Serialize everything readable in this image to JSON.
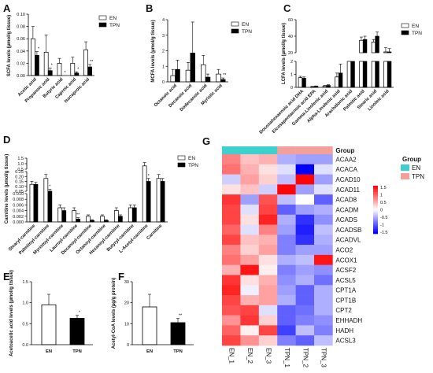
{
  "panels": {
    "A": {
      "label": "A"
    },
    "B": {
      "label": "B"
    },
    "C": {
      "label": "C"
    },
    "D": {
      "label": "D"
    },
    "E": {
      "label": "E"
    },
    "F": {
      "label": "F"
    },
    "G": {
      "label": "G"
    }
  },
  "legend": {
    "en": "EN",
    "tpn": "TPN"
  },
  "colors": {
    "en": "#ffffff",
    "tpn": "#000000",
    "bar_edge": "#000000",
    "group_en": "#3ecfcf",
    "group_tpn": "#f4a09a"
  },
  "chart_data": [
    {
      "id": "A",
      "type": "bar",
      "ylabel": "SCFA levels (µmol/g tissue)",
      "ylim": [
        0,
        0.1
      ],
      "yticks": [
        "0.00",
        "0.02",
        "0.04",
        "0.06",
        "0.08",
        "0.10"
      ],
      "categories": [
        "Acetic acid",
        "Propanoic acid",
        "Butyric acid",
        "Caproic acid",
        "Isocaproic acid"
      ],
      "series": [
        {
          "name": "EN",
          "values": [
            0.06,
            0.038,
            0.02,
            0.02,
            0.042
          ],
          "err": [
            0.02,
            0.028,
            0.008,
            0.01,
            0.013
          ]
        },
        {
          "name": "TPN",
          "values": [
            0.033,
            0.008,
            0.0,
            0.004,
            0.014
          ],
          "err": [
            0.006,
            0.004,
            0.0,
            0.002,
            0.004
          ]
        }
      ],
      "sig": [
        "*",
        "*",
        "*",
        "*",
        "**"
      ]
    },
    {
      "id": "B",
      "type": "bar",
      "ylabel": "MCFA levels (µmol/g tissue)",
      "ylim": [
        0,
        4
      ],
      "yticks": [
        "0",
        "1",
        "2",
        "3",
        "4"
      ],
      "categories": [
        "Octanoic acid",
        "Decanoic acid",
        "Dodecanoic acid",
        "Myristic acid"
      ],
      "series": [
        {
          "name": "EN",
          "values": [
            0.4,
            0.75,
            1.1,
            0.5
          ],
          "err": [
            0.4,
            0.5,
            0.6,
            0.3
          ]
        },
        {
          "name": "TPN",
          "values": [
            0.8,
            1.85,
            0.3,
            0.15
          ],
          "err": [
            0.6,
            2.0,
            0.2,
            0.1
          ]
        }
      ],
      "sig": [
        "",
        "",
        "",
        "**"
      ]
    },
    {
      "id": "C",
      "type": "bar",
      "ylabel": "LCFA levels (µmol/g tissue)",
      "ylim_segments": [
        [
          0,
          2
        ],
        [
          20,
          60
        ]
      ],
      "yticks": [
        "0",
        "1",
        "2",
        "20",
        "40",
        "60"
      ],
      "categories": [
        "Docosahexaenoic acid DHA",
        "Eicosapentaenoic acid EPA",
        "Gamma-Linolenic acid",
        "Alpha-Linolenic acid",
        "Arachidonic acid",
        "Palmitic acid",
        "Stearic acid",
        "Linoleic acid"
      ],
      "series": [
        {
          "name": "EN",
          "values": [
            0.75,
            0.05,
            0.1,
            0.8,
            2.0,
            35,
            33,
            21
          ],
          "err": [
            0.1,
            0.02,
            0.05,
            0.3,
            0.2,
            4,
            3,
            5
          ]
        },
        {
          "name": "TPN",
          "values": [
            0.7,
            0.08,
            0.15,
            1.1,
            2.0,
            36,
            40,
            21
          ],
          "err": [
            0.1,
            0.03,
            0.05,
            0.7,
            0.2,
            4,
            5,
            4
          ]
        }
      ]
    },
    {
      "id": "D",
      "type": "bar",
      "ylabel": "Carnitine levels (µmol/g tissue)",
      "yticks": [
        "0.000",
        "0.002",
        "0.004",
        "0.006",
        "0.008",
        "0.010",
        "0.05",
        "0.10",
        "0.15",
        "0.20",
        "0.25",
        "0.5",
        "1.0",
        "1.5"
      ],
      "categories": [
        "Stearyl-carnitine",
        "Palmitoyl-carnitine",
        "Myristoyl-carnitine",
        "Lauroyl-carnitine",
        "Decanoyl-carnitine",
        "Octanoyl-carnitine",
        "Hexanoyl-carnitine",
        "Butyryl-carnitine",
        "L-Acetyl-carnitine",
        "Carnitine"
      ],
      "series": [
        {
          "name": "EN",
          "values": [
            0.12,
            0.18,
            0.005,
            0.004,
            0.002,
            0.002,
            0.004,
            0.005,
            0.8,
            0.18
          ],
          "err": [
            0.03,
            0.04,
            0.001,
            0.001,
            0.0005,
            0.0005,
            0.001,
            0.001,
            0.3,
            0.04
          ]
        },
        {
          "name": "TPN",
          "values": [
            0.12,
            0.05,
            0.004,
            0.001,
            0.0005,
            0.0005,
            0.002,
            0.005,
            0.15,
            0.15
          ],
          "err": [
            0.02,
            0.02,
            0.001,
            0.0005,
            0.0003,
            0.0003,
            0.0005,
            0.001,
            0.03,
            0.03
          ]
        }
      ],
      "sig": [
        "",
        "*",
        "",
        "**",
        "",
        "",
        "",
        "",
        "*",
        ""
      ]
    },
    {
      "id": "E",
      "type": "bar",
      "ylabel": "Acetoacetic acid levels (µmol/g tissue)",
      "ylim": [
        0,
        1.5
      ],
      "yticks": [
        "0.0",
        "0.5",
        "1.0",
        "1.5"
      ],
      "categories": [
        "EN",
        "TPN"
      ],
      "values": [
        0.95,
        0.63
      ],
      "err": [
        0.25,
        0.07
      ],
      "sig": [
        "",
        "*"
      ]
    },
    {
      "id": "F",
      "type": "bar",
      "ylabel": "Acetyl-CoA levels (µg/g protein)",
      "ylim": [
        0,
        30
      ],
      "yticks": [
        "0",
        "10",
        "20",
        "30"
      ],
      "categories": [
        "EN",
        "TPN"
      ],
      "values": [
        18,
        10.5
      ],
      "err": [
        6,
        2
      ],
      "sig": [
        "",
        "**"
      ]
    },
    {
      "id": "G",
      "type": "heatmap",
      "rows": [
        "ACAA2",
        "ACACA",
        "ACAD10",
        "ACAD11",
        "ACAD8",
        "ACADM",
        "ACADS",
        "ACADSB",
        "ACADVL",
        "ACO2",
        "ACOX1",
        "ACSF2",
        "ACSL5",
        "CPT1A",
        "CPT1B",
        "CPT2",
        "EHHADH",
        "HADH",
        "ACSL3"
      ],
      "columns": [
        "EN_1",
        "EN_2",
        "EN_3",
        "TPN_1",
        "TPN_2",
        "TPN_3"
      ],
      "groups": [
        "EN",
        "EN",
        "EN",
        "TPN",
        "TPN",
        "TPN"
      ],
      "group_title": "Group",
      "colorbar_ticks": [
        "1.5",
        "1",
        "0.5",
        "0",
        "-0.5",
        "-1",
        "-1.5"
      ],
      "values": [
        [
          0.8,
          0.4,
          0.5,
          -0.5,
          -0.6,
          -0.6
        ],
        [
          0.9,
          0.5,
          0.2,
          -0.2,
          -1.6,
          -0.2
        ],
        [
          -0.3,
          0.6,
          0.3,
          -0.4,
          1.6,
          -0.6
        ],
        [
          0.2,
          0.4,
          -0.3,
          1.6,
          -0.6,
          -0.2
        ],
        [
          1.3,
          -0.6,
          1.1,
          -0.4,
          0.0,
          -1.0
        ],
        [
          1.2,
          -0.2,
          1.2,
          -1.0,
          -0.6,
          -0.5
        ],
        [
          1.2,
          0.2,
          1.4,
          -0.5,
          -1.3,
          -0.7
        ],
        [
          1.0,
          -0.2,
          0.8,
          -0.6,
          -1.4,
          -0.4
        ],
        [
          1.2,
          0.4,
          0.5,
          -0.8,
          -1.3,
          -0.5
        ],
        [
          0.8,
          0.3,
          0.6,
          -0.8,
          -0.6,
          -0.6
        ],
        [
          0.9,
          0.6,
          0.2,
          -0.5,
          -0.4,
          1.5
        ],
        [
          0.5,
          1.5,
          0.1,
          -0.8,
          -0.6,
          -0.7
        ],
        [
          1.3,
          0.2,
          0.5,
          -0.7,
          -0.5,
          -0.9
        ],
        [
          1.4,
          -0.1,
          0.6,
          -0.6,
          -1.0,
          -0.5
        ],
        [
          1.2,
          0.5,
          0.6,
          -0.5,
          -1.0,
          -0.5
        ],
        [
          1.1,
          1.2,
          -0.2,
          -1.0,
          -0.9,
          -0.5
        ],
        [
          0.7,
          1.3,
          0.3,
          -1.0,
          -0.8,
          -0.7
        ],
        [
          1.0,
          0.1,
          1.2,
          -1.2,
          -0.4,
          -0.8
        ],
        [
          1.2,
          0.7,
          0.3,
          -0.8,
          -1.0,
          -0.4
        ]
      ]
    }
  ]
}
